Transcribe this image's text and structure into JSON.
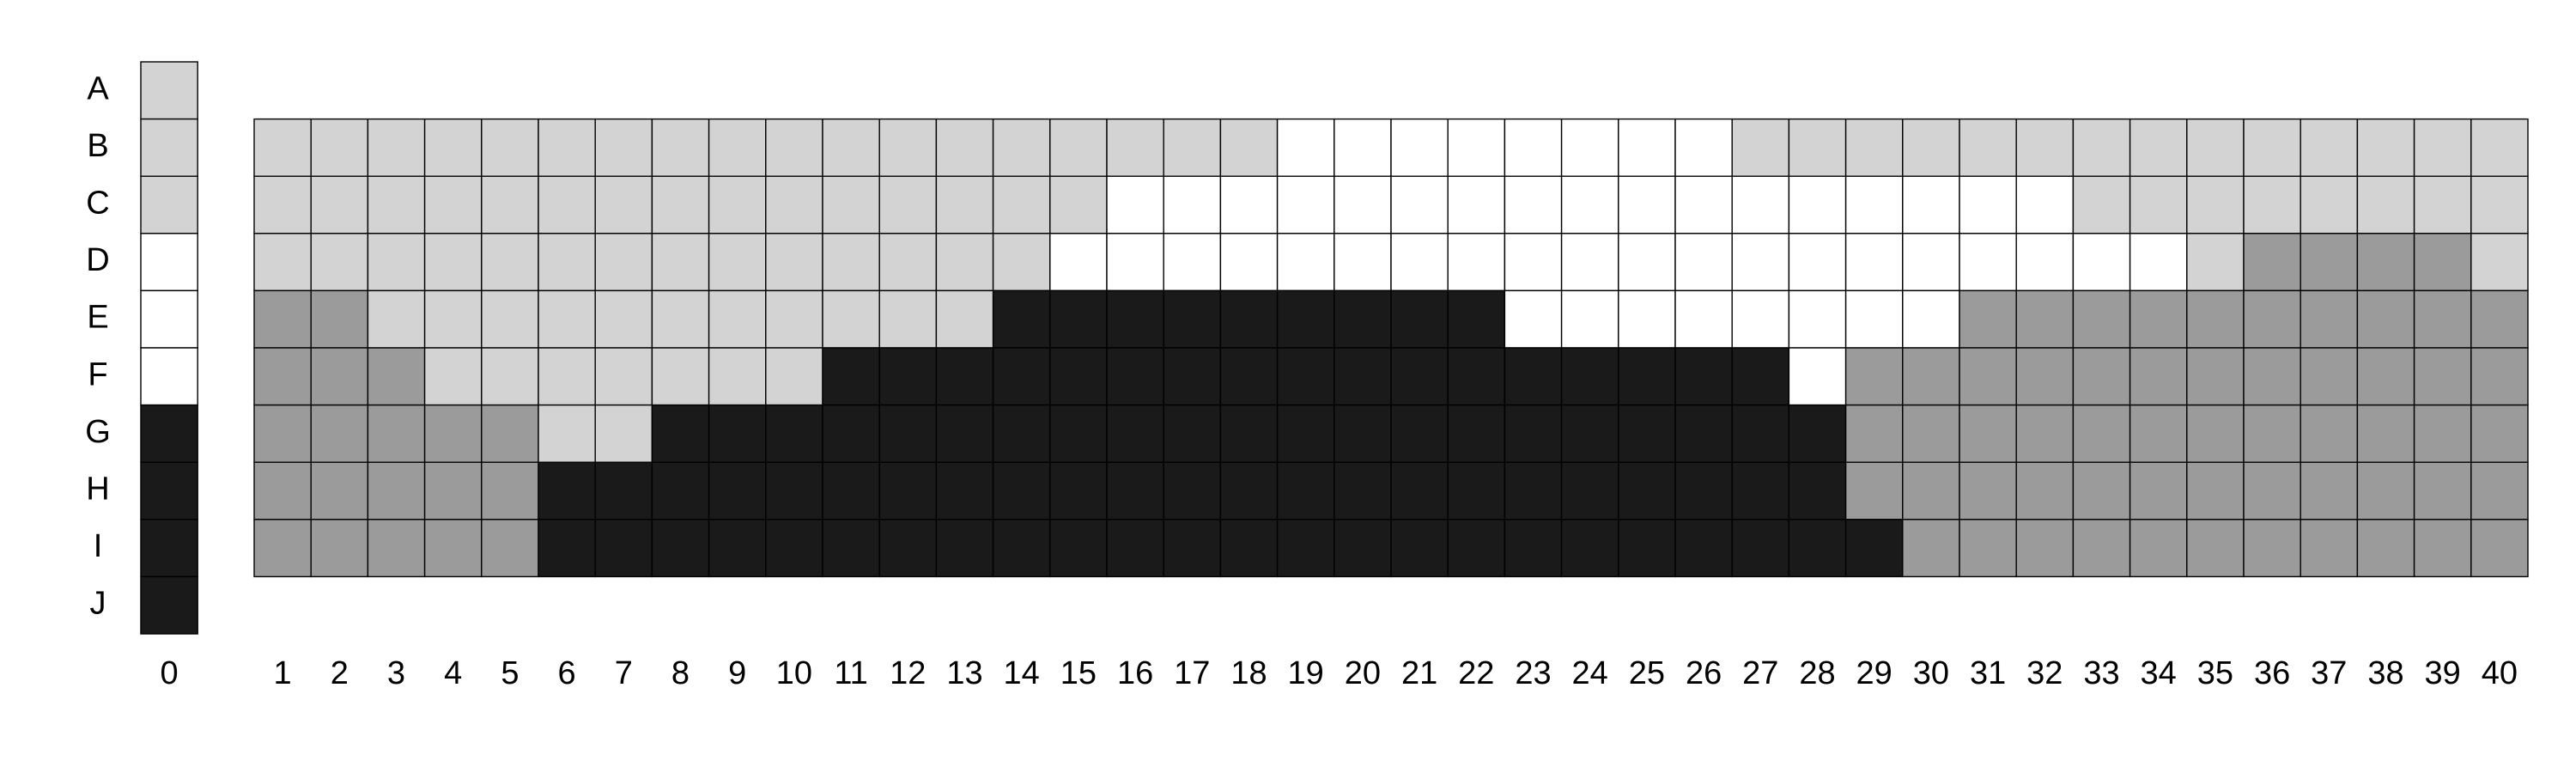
{
  "legend": {
    "0": "L",
    "1": "W",
    "2": "M",
    "3": "D"
  },
  "colors": {
    "L": "#d3d3d3",
    "W": "#ffffff",
    "M": "#9b9b9b",
    "D": "#1a1a1a"
  },
  "rows": [
    "A",
    "B",
    "C",
    "D",
    "E",
    "F",
    "G",
    "H",
    "I",
    "J"
  ],
  "key_column": {
    "label": "0",
    "values": [
      "L",
      "L",
      "L",
      "W",
      "W",
      "W",
      "D",
      "D",
      "D",
      "D"
    ]
  },
  "columns": [
    "1",
    "2",
    "3",
    "4",
    "5",
    "6",
    "7",
    "8",
    "9",
    "10",
    "11",
    "12",
    "13",
    "14",
    "15",
    "16",
    "17",
    "18",
    "19",
    "20",
    "21",
    "22",
    "23",
    "24",
    "25",
    "26",
    "27",
    "28",
    "29",
    "30",
    "31",
    "32",
    "33",
    "34",
    "35",
    "36",
    "37",
    "38",
    "39",
    "40"
  ],
  "main_rows": [
    "B",
    "C",
    "D",
    "E",
    "F",
    "G",
    "H",
    "I"
  ],
  "main_grid": [
    "LLLLLLLLLLLLLLLLLLWWWWWWWWLLLLLLLLLLLLLL",
    "LLLLLLLLLLLLLLLWWWWWWWWWWWWWWWWWLLLLLLLL",
    "LLLLLLLLLLLLLLWWWWWWWWWWWWWWWWWWWWLMMMMLL",
    "MMLLLLLLLLLLLDDDDDDDDDWWWWWWWWMMMMMMMMMMM",
    "MMMLLLLLLLDDDDDDDDDDDDDDDDDWMMMMMMMMMMMM",
    "MMMMMLLDDDDDDDDDDDDDDDDDDDDDMMMMMMMMMMMM",
    "MMMMMDDDDDDDDDDDDDDDDDDDDDDDMMMMMMMMMMMM",
    "MMMMMDDDDDDDDDDDDDDDDDDDDDDDDMMMMMMMMMMM"
  ]
}
